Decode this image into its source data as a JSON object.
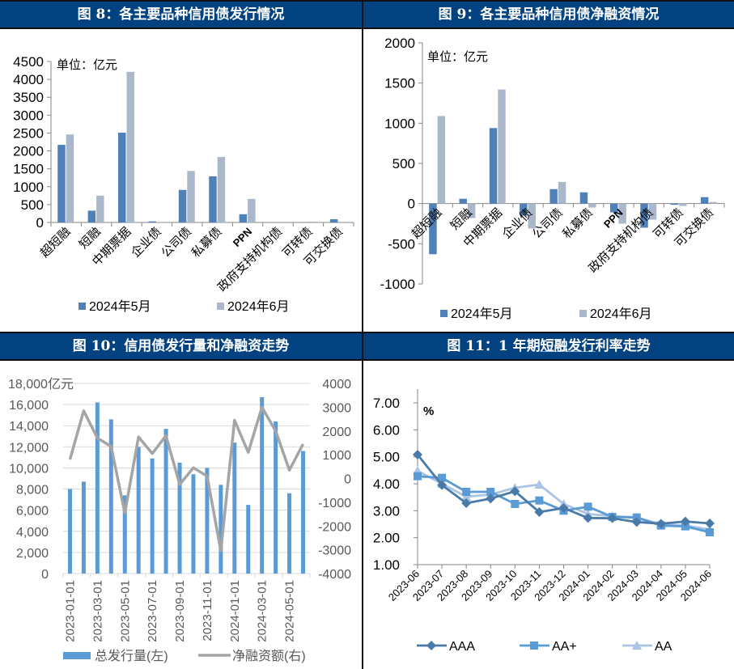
{
  "panels": {
    "fig8": {
      "title": "图 8：各主要品种信用债发行情况",
      "unit_label": "单位：亿元"
    },
    "fig9": {
      "title": "图 9：各主要品种信用债净融资情况",
      "unit_label": "单位：亿元"
    },
    "fig10": {
      "title": "图 10：信用债发行量和净融资走势",
      "unit_label": "亿元"
    },
    "fig11": {
      "title_prefix": "图 11：1 年期",
      "title_underlined": "短融发行",
      "title_suffix": "利率走势",
      "unit_label": "%"
    }
  },
  "colors": {
    "header_bg": "#024280",
    "may": "#4f81b8",
    "june": "#abb8cc",
    "issue_bar": "#5b9bd5",
    "net_line": "#a5a5a5",
    "AAA": "#4a7aa8",
    "AA+": "#5b9bd5",
    "AA": "#a9c4e4"
  },
  "chart_data": [
    {
      "id": "fig8",
      "type": "bar",
      "title": "图 8：各主要品种信用债发行情况",
      "ylabel": "单位：亿元",
      "ylim": [
        0,
        4500
      ],
      "yticks": [
        0,
        500,
        1000,
        1500,
        2000,
        2500,
        3000,
        3500,
        4000,
        4500
      ],
      "categories": [
        "超短融",
        "短融",
        "中期票据",
        "企业债",
        "公司债",
        "私募债",
        "PPN",
        "政府支持机构债",
        "可转债",
        "可交换债"
      ],
      "series": [
        {
          "name": "2024年5月",
          "values": [
            2170,
            330,
            2510,
            30,
            910,
            1290,
            230,
            0,
            5,
            90
          ]
        },
        {
          "name": "2024年6月",
          "values": [
            2460,
            750,
            4210,
            5,
            1440,
            1830,
            660,
            0,
            25,
            0
          ]
        }
      ],
      "legend_position": "bottom",
      "grid": false
    },
    {
      "id": "fig9",
      "type": "bar",
      "title": "图 9：各主要品种信用债净融资情况",
      "ylabel": "单位：亿元",
      "ylim": [
        -1000,
        2000
      ],
      "yticks": [
        -1000,
        -500,
        0,
        500,
        1000,
        1500,
        2000
      ],
      "categories": [
        "超短融",
        "短融",
        "中期票据",
        "企业债",
        "公司债",
        "私募债",
        "PPN",
        "政府支持机构债",
        "可转债",
        "可交换债"
      ],
      "series": [
        {
          "name": "2024年5月",
          "values": [
            -630,
            60,
            940,
            -150,
            180,
            140,
            -110,
            -300,
            -15,
            80
          ]
        },
        {
          "name": "2024年6月",
          "values": [
            1090,
            -180,
            1420,
            -310,
            270,
            -50,
            -250,
            -200,
            -30,
            20
          ]
        }
      ],
      "legend_position": "bottom",
      "grid": false
    },
    {
      "id": "fig10",
      "type": "bar",
      "title": "图 10：信用债发行量和净融资走势",
      "ylabel": "亿元",
      "ylim_left": [
        0,
        18000
      ],
      "yticks_left": [
        0,
        2000,
        4000,
        6000,
        8000,
        10000,
        12000,
        14000,
        16000,
        18000
      ],
      "ytick_labels_left": [
        "0",
        "2,000",
        "4,000",
        "6,000",
        "8,000",
        "10,000",
        "12,000",
        "14,000",
        "16,000",
        "18,000亿元"
      ],
      "ylim_right": [
        -4000,
        4000
      ],
      "yticks_right": [
        -4000,
        -3000,
        -2000,
        -1000,
        0,
        1000,
        2000,
        3000,
        4000
      ],
      "x": [
        "2023-01-01",
        "2023-02-01",
        "2023-03-01",
        "2023-04-01",
        "2023-05-01",
        "2023-06-01",
        "2023-07-01",
        "2023-08-01",
        "2023-09-01",
        "2023-10-01",
        "2023-11-01",
        "2023-12-01",
        "2024-01-01",
        "2024-02-01",
        "2024-03-01",
        "2024-04-01",
        "2024-05-01",
        "2024-06-01"
      ],
      "xtick_labels": [
        "2023-01-01",
        "2023-03-01",
        "2023-05-01",
        "2023-07-01",
        "2023-09-01",
        "2023-11-01",
        "2024-01-01",
        "2024-03-01",
        "2024-05-01"
      ],
      "series": [
        {
          "name": "总发行量(左)",
          "type": "bar",
          "axis": "left",
          "values": [
            8000,
            8700,
            16200,
            14600,
            7400,
            12000,
            10900,
            13700,
            10500,
            9400,
            10000,
            8400,
            12400,
            6500,
            16700,
            14400,
            7600,
            11600
          ]
        },
        {
          "name": "净融资额(右)",
          "type": "line",
          "axis": "right",
          "values": [
            800,
            2850,
            1700,
            1350,
            -1450,
            1750,
            1050,
            1800,
            -250,
            450,
            100,
            -3050,
            2450,
            1100,
            3000,
            2000,
            350,
            1450
          ]
        }
      ],
      "legend_position": "bottom",
      "grid": true
    },
    {
      "id": "fig11",
      "type": "line",
      "title": "图 11：1 年期短融发行利率走势",
      "ylabel": "%",
      "ylim": [
        1,
        7
      ],
      "yticks": [
        1,
        2,
        3,
        4,
        5,
        6,
        7
      ],
      "ytick_labels": [
        "1.00",
        "2.00",
        "3.00",
        "4.00",
        "5.00",
        "6.00",
        "7.00"
      ],
      "categories": [
        "2023-06",
        "2023-07",
        "2023-08",
        "2023-09",
        "2023-10",
        "2023-11",
        "2023-12",
        "2024-01",
        "2024-02",
        "2024-03",
        "2024-04",
        "2024-05",
        "2024-06"
      ],
      "series": [
        {
          "name": "AAA",
          "marker": "diamond",
          "values": [
            5.08,
            3.95,
            3.28,
            3.45,
            3.72,
            2.95,
            3.1,
            2.73,
            2.72,
            2.58,
            2.52,
            2.6,
            2.53
          ]
        },
        {
          "name": "AA+",
          "marker": "square",
          "values": [
            4.28,
            4.22,
            3.7,
            3.7,
            3.25,
            3.38,
            3.0,
            3.15,
            2.77,
            2.75,
            2.45,
            2.42,
            2.2
          ]
        },
        {
          "name": "AA",
          "marker": "triangle",
          "values": [
            4.48,
            4.0,
            3.52,
            3.6,
            3.85,
            3.97,
            3.25,
            2.88,
            2.8,
            2.75,
            2.5,
            2.45,
            2.3
          ]
        }
      ],
      "legend_position": "bottom",
      "grid": false
    }
  ]
}
